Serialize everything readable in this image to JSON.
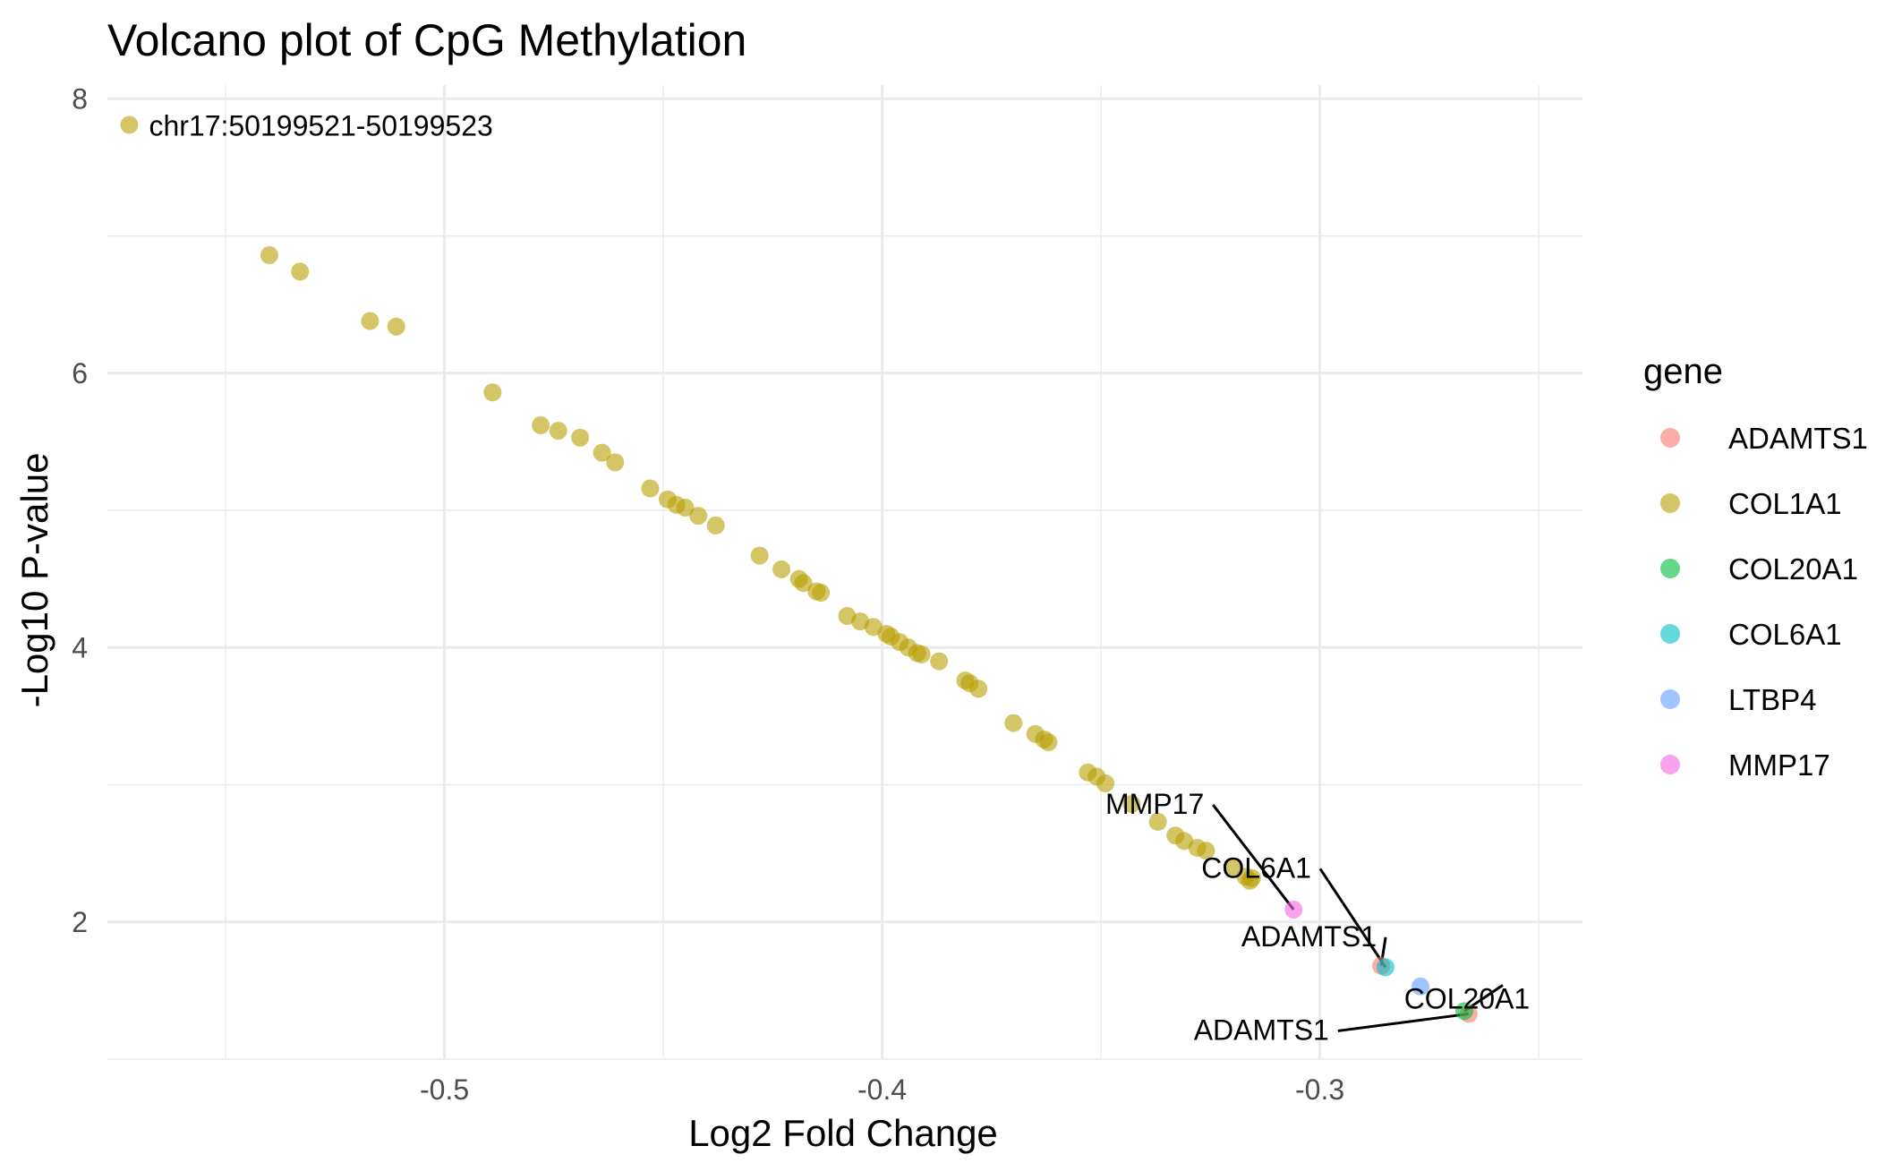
{
  "chart_data": {
    "type": "scatter",
    "title": "Volcano plot of CpG Methylation",
    "xlabel": "Log2 Fold Change",
    "ylabel": "-Log10 P-value",
    "xlim": [
      -0.577,
      -0.24
    ],
    "ylim": [
      1.0,
      8.1
    ],
    "xticks": [
      -0.5,
      -0.4,
      -0.3
    ],
    "xtick_labels": [
      "-0.5",
      "-0.4",
      "-0.3"
    ],
    "yticks": [
      2,
      4,
      6,
      8
    ],
    "ytick_labels": [
      "2",
      "4",
      "6",
      "8"
    ],
    "grid": true,
    "legend_title": "gene",
    "legend_position": "right",
    "series": [
      {
        "name": "ADAMTS1",
        "color": "#F8766D",
        "points": [
          [
            -0.286,
            1.68
          ],
          [
            -0.266,
            1.33
          ]
        ]
      },
      {
        "name": "COL1A1",
        "color": "#B79F00",
        "points": [
          [
            -0.572,
            7.81
          ],
          [
            -0.54,
            6.86
          ],
          [
            -0.533,
            6.74
          ],
          [
            -0.517,
            6.38
          ],
          [
            -0.511,
            6.34
          ],
          [
            -0.489,
            5.86
          ],
          [
            -0.478,
            5.62
          ],
          [
            -0.474,
            5.58
          ],
          [
            -0.469,
            5.53
          ],
          [
            -0.464,
            5.42
          ],
          [
            -0.461,
            5.35
          ],
          [
            -0.453,
            5.16
          ],
          [
            -0.449,
            5.08
          ],
          [
            -0.447,
            5.04
          ],
          [
            -0.445,
            5.02
          ],
          [
            -0.442,
            4.96
          ],
          [
            -0.438,
            4.89
          ],
          [
            -0.428,
            4.67
          ],
          [
            -0.423,
            4.57
          ],
          [
            -0.419,
            4.5
          ],
          [
            -0.418,
            4.47
          ],
          [
            -0.415,
            4.41
          ],
          [
            -0.414,
            4.4
          ],
          [
            -0.408,
            4.23
          ],
          [
            -0.405,
            4.19
          ],
          [
            -0.402,
            4.15
          ],
          [
            -0.399,
            4.1
          ],
          [
            -0.398,
            4.08
          ],
          [
            -0.396,
            4.04
          ],
          [
            -0.394,
            4.0
          ],
          [
            -0.392,
            3.96
          ],
          [
            -0.391,
            3.95
          ],
          [
            -0.387,
            3.9
          ],
          [
            -0.381,
            3.76
          ],
          [
            -0.38,
            3.74
          ],
          [
            -0.378,
            3.7
          ],
          [
            -0.37,
            3.45
          ],
          [
            -0.365,
            3.37
          ],
          [
            -0.363,
            3.33
          ],
          [
            -0.362,
            3.31
          ],
          [
            -0.353,
            3.09
          ],
          [
            -0.351,
            3.06
          ],
          [
            -0.349,
            3.01
          ],
          [
            -0.343,
            2.86
          ],
          [
            -0.337,
            2.73
          ],
          [
            -0.333,
            2.63
          ],
          [
            -0.331,
            2.59
          ],
          [
            -0.328,
            2.54
          ],
          [
            -0.326,
            2.52
          ],
          [
            -0.32,
            2.4
          ],
          [
            -0.317,
            2.33
          ],
          [
            -0.316,
            2.3
          ],
          [
            -0.3155,
            2.32
          ]
        ]
      },
      {
        "name": "COL20A1",
        "color": "#00BA38",
        "points": [
          [
            -0.267,
            1.35
          ]
        ]
      },
      {
        "name": "COL6A1",
        "color": "#00BFC4",
        "points": [
          [
            -0.285,
            1.67
          ]
        ]
      },
      {
        "name": "LTBP4",
        "color": "#619CFF",
        "points": [
          [
            -0.277,
            1.53
          ]
        ]
      },
      {
        "name": "MMP17",
        "color": "#F564E3",
        "points": [
          [
            -0.306,
            2.09
          ]
        ]
      }
    ],
    "annotations": [
      {
        "text": "chr17:50199521-50199523",
        "x": -0.572,
        "y": 7.81
      },
      {
        "text": "MMP17",
        "x": -0.306,
        "y": 2.09
      },
      {
        "text": "COL6A1",
        "x": -0.285,
        "y": 1.67
      },
      {
        "text": "ADAMTS1",
        "x": -0.286,
        "y": 1.68
      },
      {
        "text": "COL20A1",
        "x": -0.267,
        "y": 1.35
      },
      {
        "text": "ADAMTS1",
        "x": -0.266,
        "y": 1.33
      }
    ]
  }
}
